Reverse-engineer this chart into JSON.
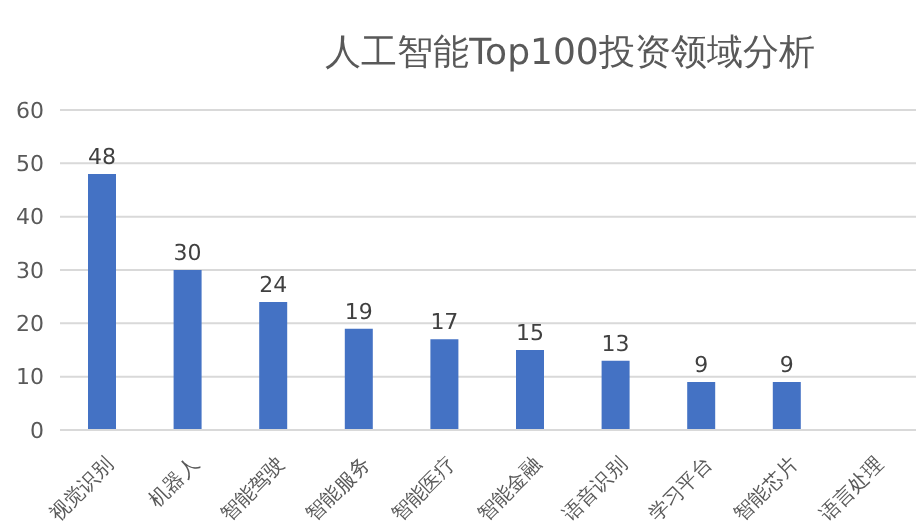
{
  "chart_data": {
    "type": "bar",
    "title": "人工智能Top100投资领域分析",
    "categories": [
      "视觉识别",
      "机器人",
      "智能驾驶",
      "智能服务",
      "智能医疗",
      "智能金融",
      "语音识别",
      "学习平台",
      "智能芯片",
      "语言处理"
    ],
    "values": [
      48,
      30,
      24,
      19,
      17,
      15,
      13,
      9,
      9,
      null
    ],
    "color": "#4472c4",
    "ylim": [
      0,
      60
    ],
    "yticks": [
      0,
      10,
      20,
      30,
      40,
      50,
      60
    ],
    "grid": "y",
    "data_labels": true
  }
}
